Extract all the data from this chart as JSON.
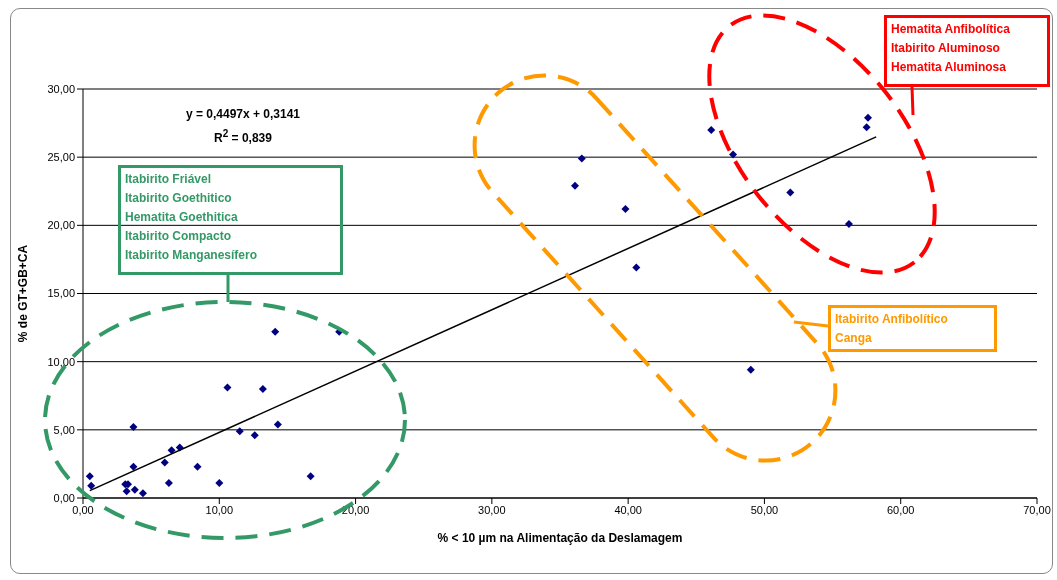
{
  "chart_data": {
    "type": "scatter",
    "xlabel": "% < 10 µm na Alimentação da Deslamagem",
    "ylabel": "% de GT+GB+CA",
    "xlim": [
      0,
      70
    ],
    "ylim": [
      0,
      30
    ],
    "xticks": [
      {
        "value": 0,
        "label": "0,00"
      },
      {
        "value": 10,
        "label": "10,00"
      },
      {
        "value": 20,
        "label": "20,00"
      },
      {
        "value": 30,
        "label": "30,00"
      },
      {
        "value": 40,
        "label": "40,00"
      },
      {
        "value": 50,
        "label": "50,00"
      },
      {
        "value": 60,
        "label": "60,00"
      },
      {
        "value": 70,
        "label": "70,00"
      }
    ],
    "yticks": [
      {
        "value": 0,
        "label": "0,00"
      },
      {
        "value": 5,
        "label": "5,00"
      },
      {
        "value": 10,
        "label": "10,00"
      },
      {
        "value": 15,
        "label": "15,00"
      },
      {
        "value": 20,
        "label": "20,00"
      },
      {
        "value": 25,
        "label": "25,00"
      },
      {
        "value": 30,
        "label": "30,00"
      }
    ],
    "grid": "y",
    "marker": "diamond",
    "series": [
      {
        "type": "scatter",
        "color": "#000080",
        "x": [
          0.5,
          0.6,
          3.1,
          3.3,
          3.2,
          3.8,
          3.7,
          3.7,
          4.4,
          6.0,
          6.3,
          6.5,
          7.1,
          8.4,
          10.0,
          10.6,
          11.5,
          12.6,
          13.2,
          14.1,
          14.3,
          16.7,
          18.8,
          36.6,
          36.1,
          39.8,
          40.6,
          46.1,
          47.7,
          51.9,
          56.2,
          57.6,
          57.5,
          49.0
        ],
        "values": [
          1.6,
          0.9,
          1.0,
          1.0,
          0.5,
          0.6,
          5.2,
          2.3,
          0.35,
          2.6,
          1.1,
          3.5,
          3.7,
          2.3,
          1.1,
          8.1,
          4.9,
          4.6,
          8.0,
          12.2,
          5.4,
          1.6,
          12.2,
          24.9,
          22.9,
          21.2,
          16.9,
          27.0,
          25.2,
          22.4,
          20.1,
          27.9,
          27.2,
          9.4
        ]
      },
      {
        "type": "line",
        "color": "#000000",
        "marker": "none",
        "x": [
          0.5,
          58.2
        ],
        "values": [
          0.54,
          26.49
        ]
      }
    ],
    "annotations": [
      "y = 0,4497x + 0,3141",
      "R$^{2}$ = 0,839",
      "Itabirito Friável\nItabirito Goethitico\nHematita Goethitica\nItabirito Compacto\nItabirito Manganesífero",
      "Itabirito Anfibolítico\nCanga",
      "Hematita Anfibolítica\nItabirito Aluminoso\nHematita Aluminosa"
    ]
  }
}
